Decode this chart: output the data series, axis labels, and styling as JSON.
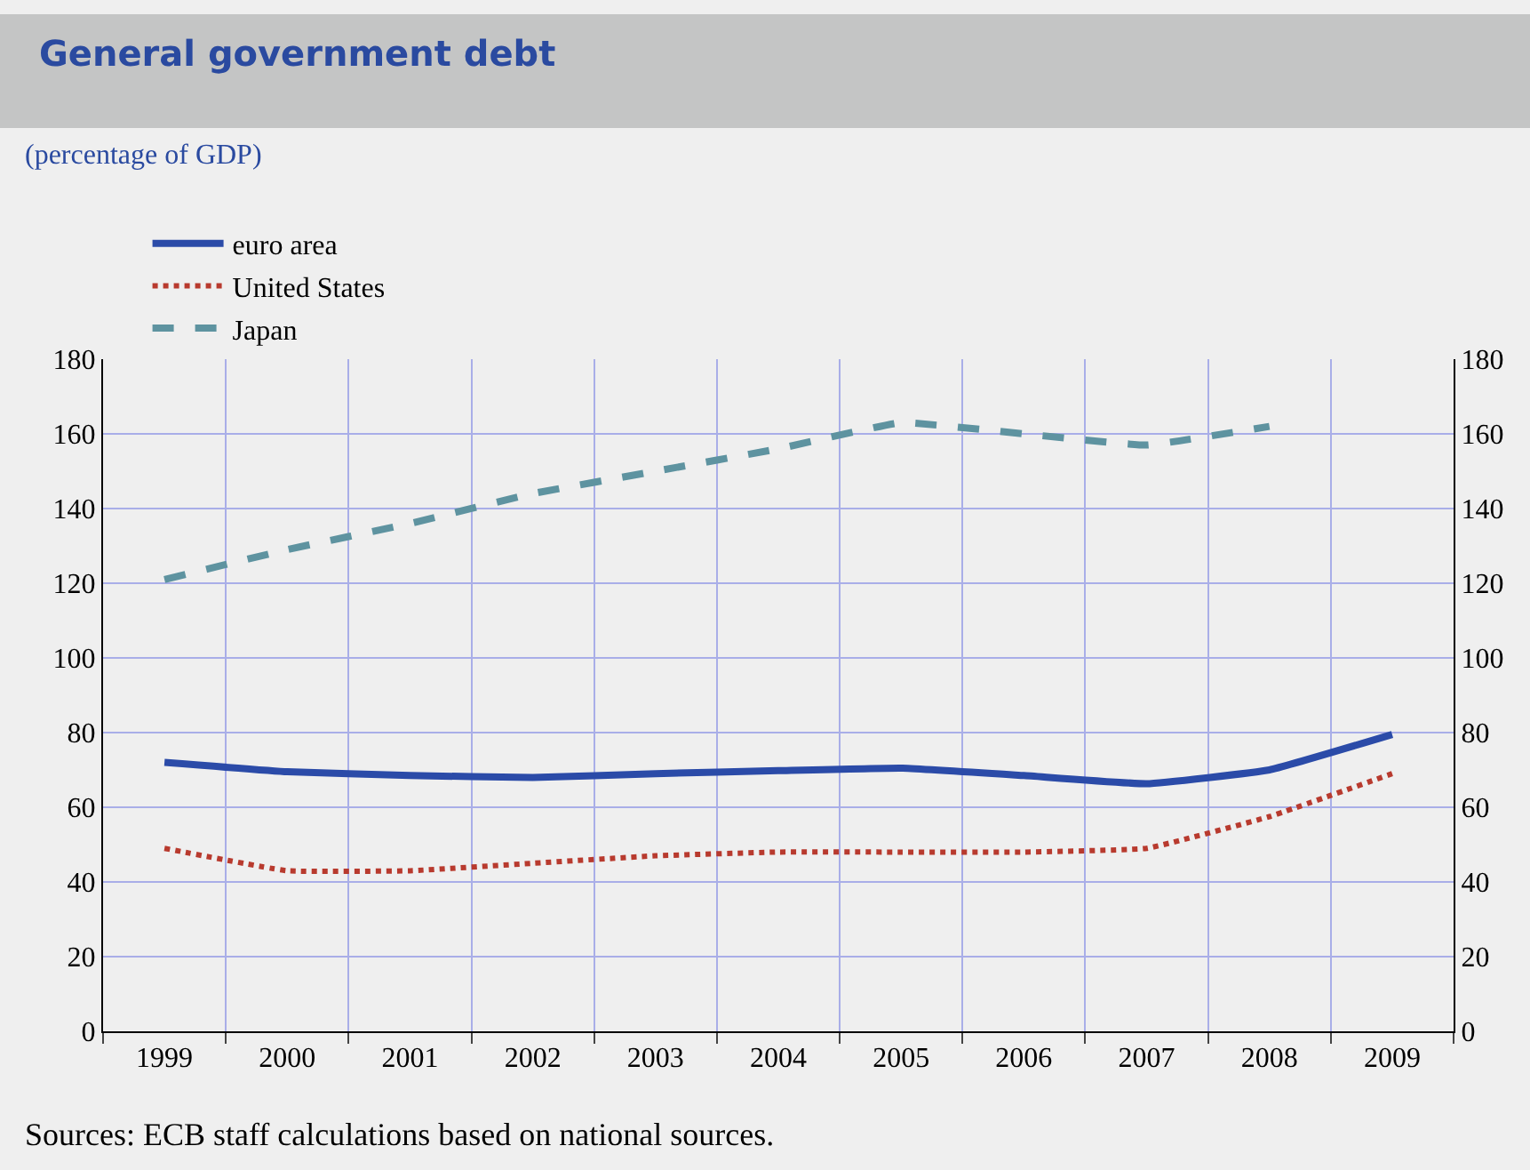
{
  "chart_data": {
    "type": "line",
    "title": "General government debt",
    "subtitle": "(percentage of GDP)",
    "categories": [
      "1999",
      "2000",
      "2001",
      "2002",
      "2003",
      "2004",
      "2005",
      "2006",
      "2007",
      "2008",
      "2009"
    ],
    "series": [
      {
        "name": "euro area",
        "color": "#2b4ba8",
        "line_style": "solid",
        "values": [
          72,
          69.5,
          68.5,
          68,
          69,
          69.8,
          70.5,
          68.5,
          66.3,
          70,
          79.5
        ]
      },
      {
        "name": "United States",
        "color": "#b83a2e",
        "line_style": "dotted",
        "values": [
          49,
          43,
          43,
          45,
          47,
          48,
          48,
          48,
          49,
          57.5,
          69
        ]
      },
      {
        "name": "Japan",
        "color": "#5e93a0",
        "line_style": "dashed",
        "values": [
          121,
          129,
          136,
          144,
          150,
          156,
          163,
          160,
          157,
          162,
          null
        ]
      }
    ],
    "ylim": [
      0,
      180
    ],
    "yticks": [
      0,
      20,
      40,
      60,
      80,
      100,
      120,
      140,
      160,
      180
    ],
    "y2lim": [
      0,
      180
    ],
    "y2ticks": [
      0,
      20,
      40,
      60,
      80,
      100,
      120,
      140,
      160,
      180
    ],
    "grid": true,
    "legend": "top left",
    "marker": "none",
    "annotations": [
      "Sources: ECB staff calculations based on national sources."
    ]
  }
}
